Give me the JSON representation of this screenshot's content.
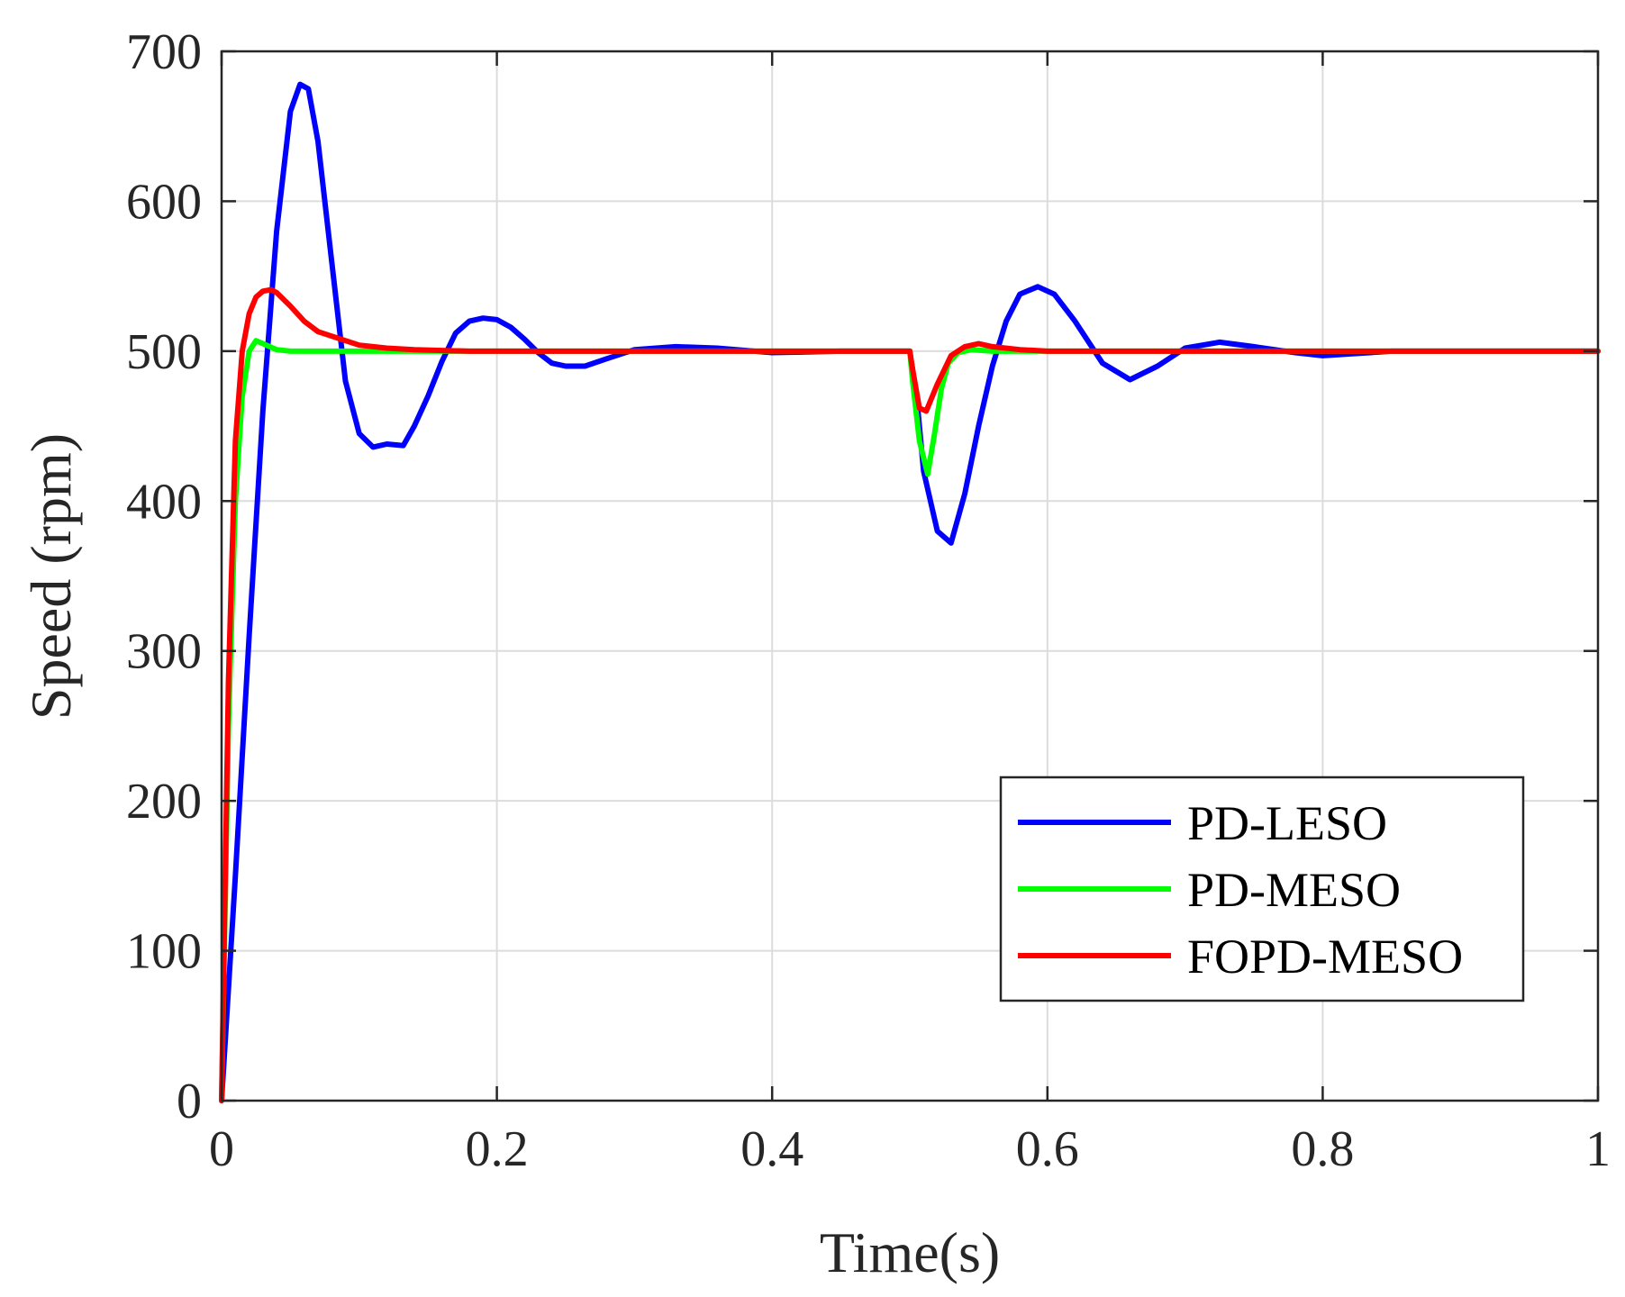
{
  "chart_data": {
    "type": "line",
    "title": "",
    "xlabel": "Time(s)",
    "ylabel": "Speed (rpm)",
    "xlim": [
      0,
      1
    ],
    "ylim": [
      0,
      700
    ],
    "grid": true,
    "legend_position": "bottom-right",
    "xticks": [
      0,
      0.2,
      0.4,
      0.6,
      0.8,
      1
    ],
    "xtick_labels": [
      "0",
      "0.2",
      "0.4",
      "0.6",
      "0.8",
      "1"
    ],
    "yticks": [
      0,
      100,
      200,
      300,
      400,
      500,
      600,
      700
    ],
    "ytick_labels": [
      "0",
      "100",
      "200",
      "300",
      "400",
      "500",
      "600",
      "700"
    ],
    "series": [
      {
        "name": "PD-LESO",
        "color": "#0000ff",
        "x": [
          0,
          0.01,
          0.02,
          0.03,
          0.04,
          0.05,
          0.057,
          0.063,
          0.07,
          0.08,
          0.09,
          0.1,
          0.11,
          0.12,
          0.132,
          0.14,
          0.15,
          0.16,
          0.17,
          0.18,
          0.19,
          0.2,
          0.21,
          0.22,
          0.23,
          0.24,
          0.25,
          0.264,
          0.28,
          0.3,
          0.33,
          0.36,
          0.4,
          0.45,
          0.5,
          0.505,
          0.51,
          0.52,
          0.53,
          0.54,
          0.55,
          0.56,
          0.57,
          0.58,
          0.593,
          0.605,
          0.62,
          0.64,
          0.66,
          0.68,
          0.7,
          0.725,
          0.75,
          0.78,
          0.8,
          0.85,
          0.9,
          0.95,
          1.0
        ],
        "y": [
          0,
          150,
          310,
          460,
          580,
          660,
          678,
          675,
          640,
          560,
          480,
          445,
          436,
          438,
          437,
          450,
          470,
          493,
          512,
          520,
          522,
          521,
          516,
          508,
          499,
          492,
          490,
          490,
          495,
          501,
          503,
          502,
          499,
          500,
          500,
          470,
          420,
          380,
          372,
          405,
          450,
          490,
          520,
          538,
          543,
          538,
          520,
          492,
          481,
          490,
          502,
          506,
          503,
          499,
          497,
          500,
          500,
          500,
          500
        ]
      },
      {
        "name": "PD-MESO",
        "color": "#00ff00",
        "x": [
          0,
          0.005,
          0.01,
          0.015,
          0.02,
          0.025,
          0.03,
          0.04,
          0.05,
          0.07,
          0.1,
          0.2,
          0.3,
          0.4,
          0.5,
          0.502,
          0.507,
          0.513,
          0.518,
          0.523,
          0.528,
          0.535,
          0.545,
          0.56,
          0.6,
          0.7,
          0.8,
          0.9,
          1.0
        ],
        "y": [
          0,
          250,
          400,
          470,
          500,
          507,
          505,
          501,
          500,
          500,
          500,
          500,
          500,
          500,
          500,
          480,
          440,
          418,
          445,
          475,
          492,
          499,
          501,
          500,
          500,
          500,
          500,
          500,
          500
        ]
      },
      {
        "name": "FOPD-MESO",
        "color": "#ff0000",
        "x": [
          0,
          0.005,
          0.01,
          0.015,
          0.02,
          0.025,
          0.03,
          0.036,
          0.04,
          0.05,
          0.06,
          0.07,
          0.08,
          0.09,
          0.1,
          0.12,
          0.14,
          0.18,
          0.25,
          0.3,
          0.4,
          0.5,
          0.502,
          0.507,
          0.512,
          0.52,
          0.53,
          0.54,
          0.55,
          0.56,
          0.58,
          0.6,
          0.7,
          0.8,
          0.9,
          1.0
        ],
        "y": [
          0,
          280,
          440,
          500,
          525,
          536,
          540,
          541,
          539,
          530,
          520,
          513,
          510,
          507,
          504,
          502,
          501,
          500,
          500,
          500,
          500,
          500,
          488,
          462,
          460,
          478,
          497,
          503,
          505,
          503,
          501,
          500,
          500,
          500,
          500,
          500
        ]
      }
    ]
  }
}
